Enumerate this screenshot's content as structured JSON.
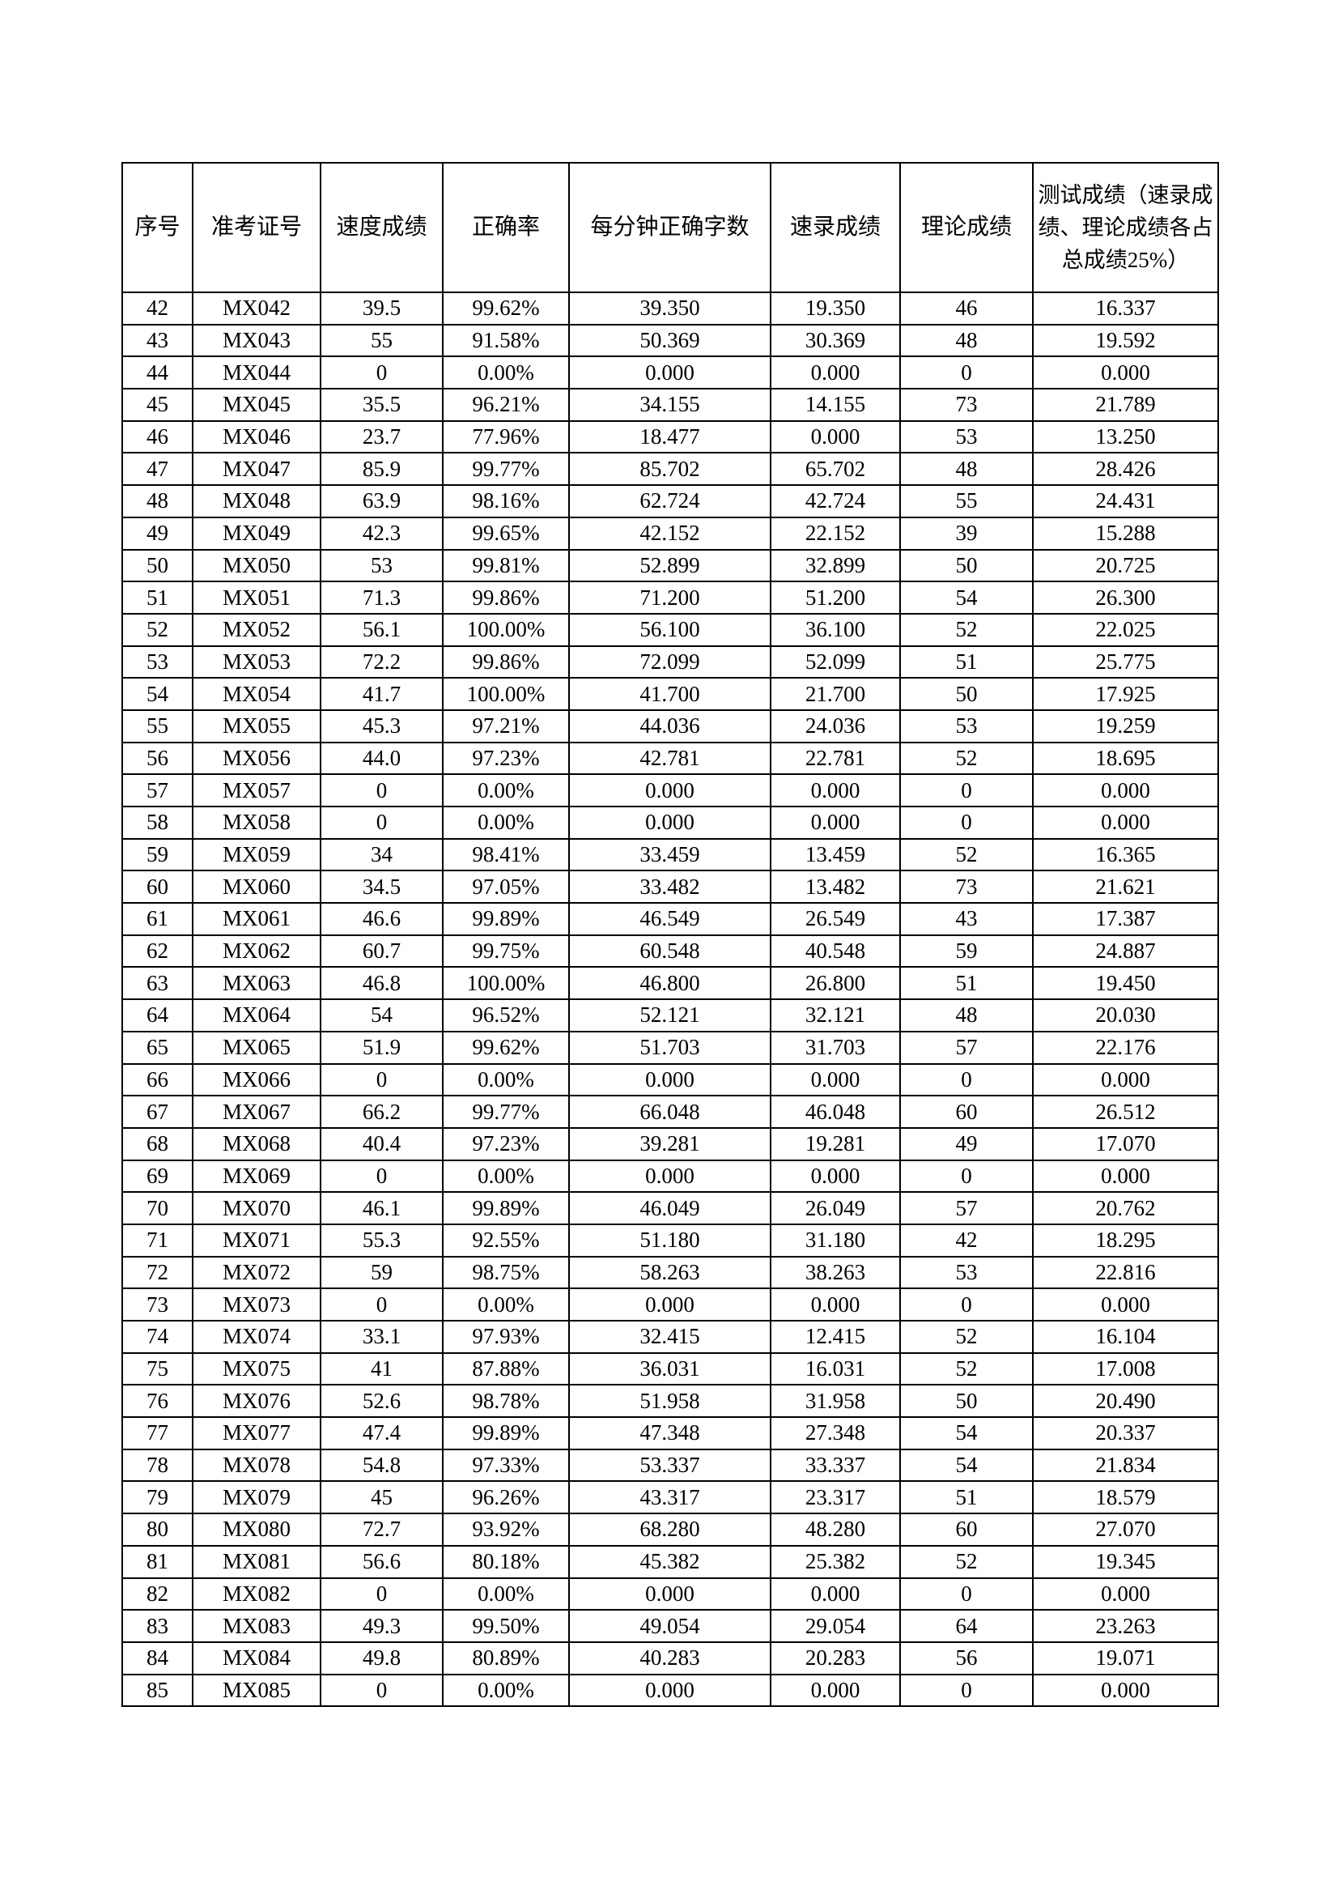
{
  "table": {
    "headers": [
      "序号",
      "准考证号",
      "速度成绩",
      "正确率",
      "每分钟正确字数",
      "速录成绩",
      "理论成绩",
      "测试成绩（速录成绩、理论成绩各占总成绩25%）"
    ],
    "rows": [
      [
        "42",
        "MX042",
        "39.5",
        "99.62%",
        "39.350",
        "19.350",
        "46",
        "16.337"
      ],
      [
        "43",
        "MX043",
        "55",
        "91.58%",
        "50.369",
        "30.369",
        "48",
        "19.592"
      ],
      [
        "44",
        "MX044",
        "0",
        "0.00%",
        "0.000",
        "0.000",
        "0",
        "0.000"
      ],
      [
        "45",
        "MX045",
        "35.5",
        "96.21%",
        "34.155",
        "14.155",
        "73",
        "21.789"
      ],
      [
        "46",
        "MX046",
        "23.7",
        "77.96%",
        "18.477",
        "0.000",
        "53",
        "13.250"
      ],
      [
        "47",
        "MX047",
        "85.9",
        "99.77%",
        "85.702",
        "65.702",
        "48",
        "28.426"
      ],
      [
        "48",
        "MX048",
        "63.9",
        "98.16%",
        "62.724",
        "42.724",
        "55",
        "24.431"
      ],
      [
        "49",
        "MX049",
        "42.3",
        "99.65%",
        "42.152",
        "22.152",
        "39",
        "15.288"
      ],
      [
        "50",
        "MX050",
        "53",
        "99.81%",
        "52.899",
        "32.899",
        "50",
        "20.725"
      ],
      [
        "51",
        "MX051",
        "71.3",
        "99.86%",
        "71.200",
        "51.200",
        "54",
        "26.300"
      ],
      [
        "52",
        "MX052",
        "56.1",
        "100.00%",
        "56.100",
        "36.100",
        "52",
        "22.025"
      ],
      [
        "53",
        "MX053",
        "72.2",
        "99.86%",
        "72.099",
        "52.099",
        "51",
        "25.775"
      ],
      [
        "54",
        "MX054",
        "41.7",
        "100.00%",
        "41.700",
        "21.700",
        "50",
        "17.925"
      ],
      [
        "55",
        "MX055",
        "45.3",
        "97.21%",
        "44.036",
        "24.036",
        "53",
        "19.259"
      ],
      [
        "56",
        "MX056",
        "44.0",
        "97.23%",
        "42.781",
        "22.781",
        "52",
        "18.695"
      ],
      [
        "57",
        "MX057",
        "0",
        "0.00%",
        "0.000",
        "0.000",
        "0",
        "0.000"
      ],
      [
        "58",
        "MX058",
        "0",
        "0.00%",
        "0.000",
        "0.000",
        "0",
        "0.000"
      ],
      [
        "59",
        "MX059",
        "34",
        "98.41%",
        "33.459",
        "13.459",
        "52",
        "16.365"
      ],
      [
        "60",
        "MX060",
        "34.5",
        "97.05%",
        "33.482",
        "13.482",
        "73",
        "21.621"
      ],
      [
        "61",
        "MX061",
        "46.6",
        "99.89%",
        "46.549",
        "26.549",
        "43",
        "17.387"
      ],
      [
        "62",
        "MX062",
        "60.7",
        "99.75%",
        "60.548",
        "40.548",
        "59",
        "24.887"
      ],
      [
        "63",
        "MX063",
        "46.8",
        "100.00%",
        "46.800",
        "26.800",
        "51",
        "19.450"
      ],
      [
        "64",
        "MX064",
        "54",
        "96.52%",
        "52.121",
        "32.121",
        "48",
        "20.030"
      ],
      [
        "65",
        "MX065",
        "51.9",
        "99.62%",
        "51.703",
        "31.703",
        "57",
        "22.176"
      ],
      [
        "66",
        "MX066",
        "0",
        "0.00%",
        "0.000",
        "0.000",
        "0",
        "0.000"
      ],
      [
        "67",
        "MX067",
        "66.2",
        "99.77%",
        "66.048",
        "46.048",
        "60",
        "26.512"
      ],
      [
        "68",
        "MX068",
        "40.4",
        "97.23%",
        "39.281",
        "19.281",
        "49",
        "17.070"
      ],
      [
        "69",
        "MX069",
        "0",
        "0.00%",
        "0.000",
        "0.000",
        "0",
        "0.000"
      ],
      [
        "70",
        "MX070",
        "46.1",
        "99.89%",
        "46.049",
        "26.049",
        "57",
        "20.762"
      ],
      [
        "71",
        "MX071",
        "55.3",
        "92.55%",
        "51.180",
        "31.180",
        "42",
        "18.295"
      ],
      [
        "72",
        "MX072",
        "59",
        "98.75%",
        "58.263",
        "38.263",
        "53",
        "22.816"
      ],
      [
        "73",
        "MX073",
        "0",
        "0.00%",
        "0.000",
        "0.000",
        "0",
        "0.000"
      ],
      [
        "74",
        "MX074",
        "33.1",
        "97.93%",
        "32.415",
        "12.415",
        "52",
        "16.104"
      ],
      [
        "75",
        "MX075",
        "41",
        "87.88%",
        "36.031",
        "16.031",
        "52",
        "17.008"
      ],
      [
        "76",
        "MX076",
        "52.6",
        "98.78%",
        "51.958",
        "31.958",
        "50",
        "20.490"
      ],
      [
        "77",
        "MX077",
        "47.4",
        "99.89%",
        "47.348",
        "27.348",
        "54",
        "20.337"
      ],
      [
        "78",
        "MX078",
        "54.8",
        "97.33%",
        "53.337",
        "33.337",
        "54",
        "21.834"
      ],
      [
        "79",
        "MX079",
        "45",
        "96.26%",
        "43.317",
        "23.317",
        "51",
        "18.579"
      ],
      [
        "80",
        "MX080",
        "72.7",
        "93.92%",
        "68.280",
        "48.280",
        "60",
        "27.070"
      ],
      [
        "81",
        "MX081",
        "56.6",
        "80.18%",
        "45.382",
        "25.382",
        "52",
        "19.345"
      ],
      [
        "82",
        "MX082",
        "0",
        "0.00%",
        "0.000",
        "0.000",
        "0",
        "0.000"
      ],
      [
        "83",
        "MX083",
        "49.3",
        "99.50%",
        "49.054",
        "29.054",
        "64",
        "23.263"
      ],
      [
        "84",
        "MX084",
        "49.8",
        "80.89%",
        "40.283",
        "20.283",
        "56",
        "19.071"
      ],
      [
        "85",
        "MX085",
        "0",
        "0.00%",
        "0.000",
        "0.000",
        "0",
        "0.000"
      ]
    ]
  }
}
